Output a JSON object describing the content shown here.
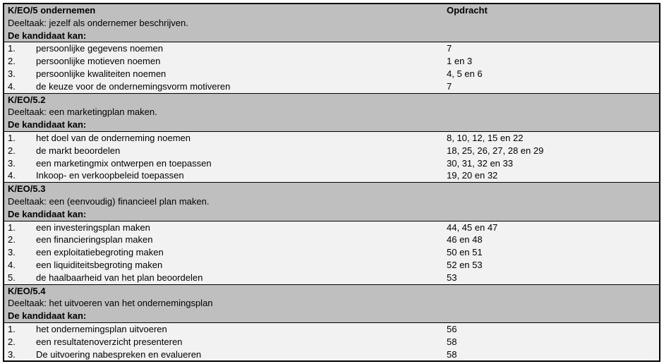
{
  "document": {
    "opdracht_header": "Opdracht",
    "colors": {
      "header_bg": "#bfbfbf",
      "row_bg": "#f2f2f2",
      "border": "#000000"
    },
    "sections": [
      {
        "title": "K/EO/5 ondernemen",
        "deeltaak": "Deeltaak: jezelf als ondernemer beschrijven.",
        "kan": "De kandidaat kan:",
        "items": [
          {
            "num": "1.",
            "text": "persoonlijke gegevens noemen",
            "opdracht": "7"
          },
          {
            "num": "2.",
            "text": "persoonlijke motieven noemen",
            "opdracht": "1 en 3"
          },
          {
            "num": "3.",
            "text": "persoonlijke kwaliteiten noemen",
            "opdracht": "4, 5 en 6"
          },
          {
            "num": "4.",
            "text": "de keuze voor de ondernemingsvorm motiveren",
            "opdracht": "7"
          }
        ]
      },
      {
        "title": "K/EO/5.2",
        "deeltaak": "Deeltaak: een marketingplan maken.",
        "kan": "De kandidaat kan:",
        "items": [
          {
            "num": "1.",
            "text": "het doel van de onderneming noemen",
            "opdracht": "8, 10, 12, 15 en 22"
          },
          {
            "num": "2.",
            "text": "de markt beoordelen",
            "opdracht": "18, 25, 26, 27, 28 en 29"
          },
          {
            "num": "3.",
            "text": "een marketingmix ontwerpen en toepassen",
            "opdracht": "30, 31, 32 en 33"
          },
          {
            "num": "4.",
            "text": "Inkoop- en verkoopbeleid toepassen",
            "opdracht": "19, 20 en 32"
          }
        ]
      },
      {
        "title": "K/EO/5.3",
        "deeltaak": "Deeltaak: een (eenvoudig) financieel plan maken.",
        "kan": "De kandidaat kan:",
        "items": [
          {
            "num": "1.",
            "text": "een investeringsplan maken",
            "opdracht": "44, 45 en 47"
          },
          {
            "num": "2.",
            "text": "een financieringsplan maken",
            "opdracht": "46 en 48"
          },
          {
            "num": "3.",
            "text": "een exploitatiebegroting maken",
            "opdracht": "50 en 51"
          },
          {
            "num": "4.",
            "text": "een liquiditeitsbegroting maken",
            "opdracht": "52 en 53"
          },
          {
            "num": "5.",
            "text": "de haalbaarheid van het plan beoordelen",
            "opdracht": "53"
          }
        ]
      },
      {
        "title": "K/EO/5.4",
        "deeltaak": "Deeltaak: het uitvoeren van het ondernemingsplan",
        "kan": "De kandidaat kan:",
        "items": [
          {
            "num": "1.",
            "text": "het ondernemingsplan uitvoeren",
            "opdracht": "56"
          },
          {
            "num": "2.",
            "text": "een resultatenoverzicht presenteren",
            "opdracht": "58"
          },
          {
            "num": "3.",
            "text": "De uitvoering nabespreken en evalueren",
            "opdracht": "58"
          }
        ]
      }
    ]
  }
}
